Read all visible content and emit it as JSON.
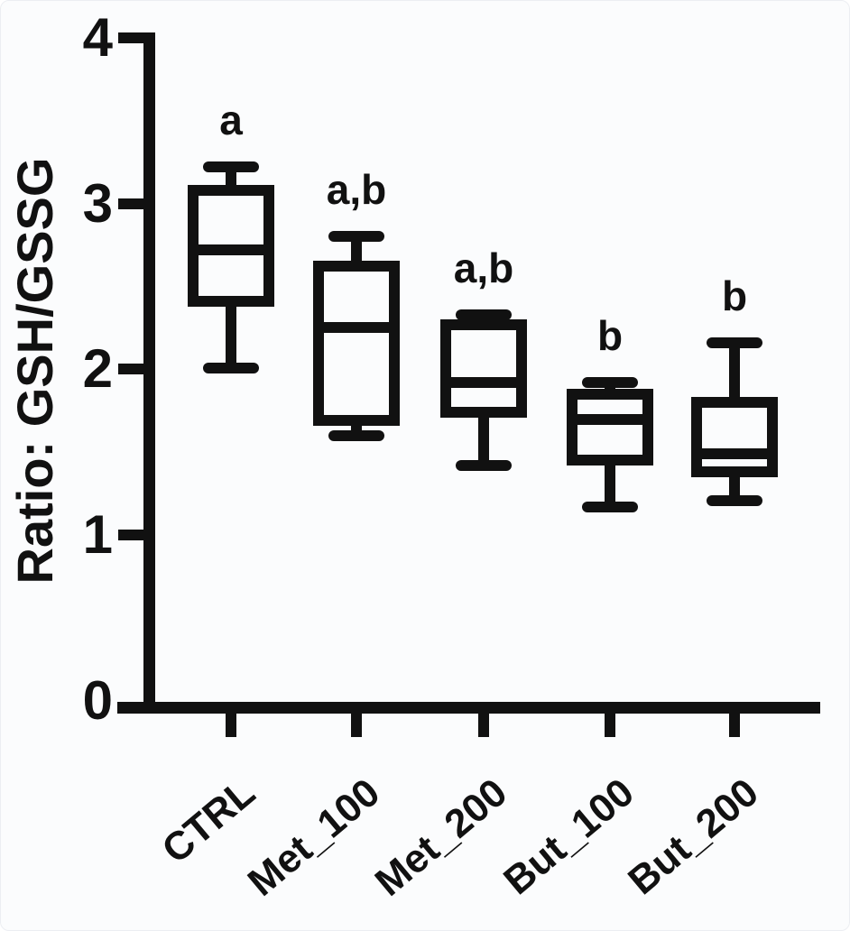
{
  "colors": {
    "line": "#111111",
    "background": "#fbfcfd"
  },
  "chart_data": {
    "type": "box",
    "title": "",
    "xlabel": "",
    "ylabel": "Ratio: GSH/GSSG",
    "ylim": [
      0,
      4
    ],
    "yticks": [
      0,
      1,
      2,
      3,
      4
    ],
    "grid": false,
    "legend": "none",
    "categories": [
      "CTRL",
      "Met_100",
      "Met_200",
      "But_100",
      "But_200"
    ],
    "series": [
      {
        "name": "CTRL",
        "min": 2.01,
        "q1": 2.41,
        "median": 2.72,
        "q3": 3.08,
        "max": 3.22,
        "significance": "a"
      },
      {
        "name": "Met_100",
        "min": 1.6,
        "q1": 1.69,
        "median": 2.25,
        "q3": 2.62,
        "max": 2.8,
        "significance": "a,b"
      },
      {
        "name": "Met_200",
        "min": 1.42,
        "q1": 1.74,
        "median": 1.92,
        "q3": 2.27,
        "max": 2.33,
        "significance": "a,b"
      },
      {
        "name": "But_100",
        "min": 1.17,
        "q1": 1.45,
        "median": 1.7,
        "q3": 1.85,
        "max": 1.92,
        "significance": "b"
      },
      {
        "name": "But_200",
        "min": 1.21,
        "q1": 1.38,
        "median": 1.49,
        "q3": 1.8,
        "max": 2.16,
        "significance": "b"
      }
    ]
  }
}
